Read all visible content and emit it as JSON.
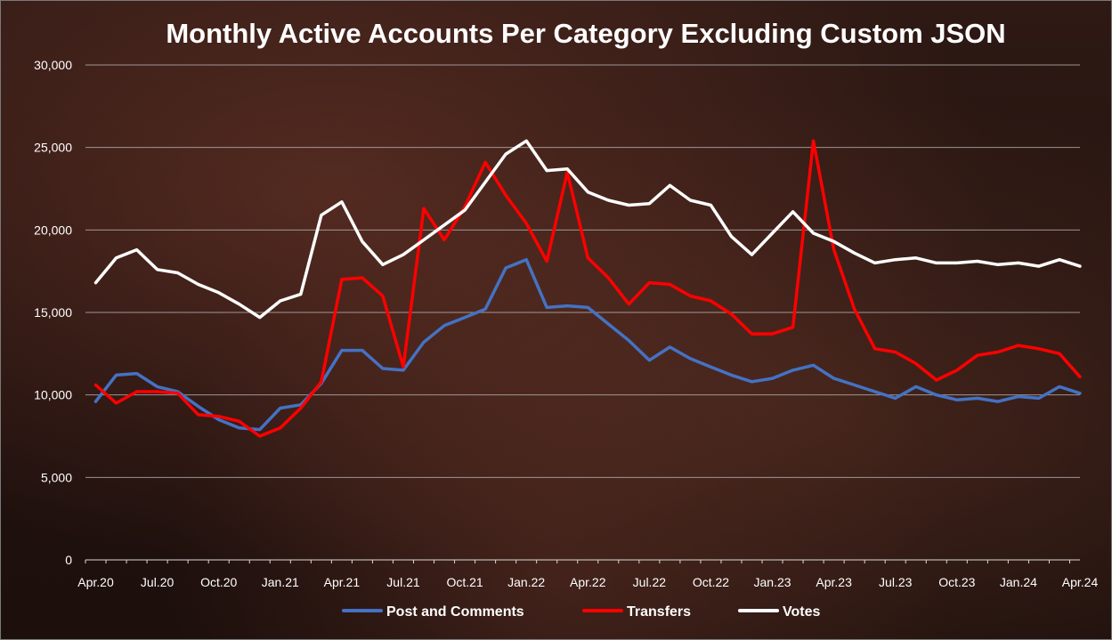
{
  "chart_data": {
    "type": "line",
    "title": "Monthly Active Accounts Per Category Excluding Custom JSON",
    "xlabel": "",
    "ylabel": "",
    "ylim": [
      0,
      30000
    ],
    "yticks": [
      0,
      5000,
      10000,
      15000,
      20000,
      25000,
      30000
    ],
    "ytick_labels": [
      "0",
      "5,000",
      "10,000",
      "15,000",
      "20,000",
      "25,000",
      "30,000"
    ],
    "x": [
      "Apr.20",
      "May.20",
      "Jun.20",
      "Jul.20",
      "Aug.20",
      "Sep.20",
      "Oct.20",
      "Nov.20",
      "Dec.20",
      "Jan.21",
      "Feb.21",
      "Mar.21",
      "Apr.21",
      "May.21",
      "Jun.21",
      "Jul.21",
      "Aug.21",
      "Sep.21",
      "Oct.21",
      "Nov.21",
      "Dec.21",
      "Jan.22",
      "Feb.22",
      "Mar.22",
      "Apr.22",
      "May.22",
      "Jun.22",
      "Jul.22",
      "Aug.22",
      "Sep.22",
      "Oct.22",
      "Nov.22",
      "Dec.22",
      "Jan.23",
      "Feb.23",
      "Mar.23",
      "Apr.23",
      "May.23",
      "Jun.23",
      "Jul.23",
      "Aug.23",
      "Sep.23",
      "Oct.23",
      "Nov.23",
      "Dec.23",
      "Jan.24",
      "Feb.24",
      "Mar.24",
      "Apr.24"
    ],
    "x_tick_labels": [
      "Apr.20",
      "Jul.20",
      "Oct.20",
      "Jan.21",
      "Apr.21",
      "Jul.21",
      "Oct.21",
      "Jan.22",
      "Apr.22",
      "Jul.22",
      "Oct.22",
      "Jan.23",
      "Apr.23",
      "Jul.23",
      "Oct.23",
      "Jan.24",
      "Apr.24"
    ],
    "grid": true,
    "legend_position": "bottom",
    "series": [
      {
        "name": "Post and Comments",
        "color": "#4472c4",
        "values": [
          9600,
          11200,
          11300,
          10500,
          10200,
          9300,
          8500,
          8000,
          7900,
          9200,
          9400,
          10700,
          12700,
          12700,
          11600,
          11500,
          13200,
          14200,
          14700,
          15200,
          17700,
          18200,
          15300,
          15400,
          15300,
          14300,
          13300,
          12100,
          12900,
          12200,
          11700,
          11200,
          10800,
          11000,
          11500,
          11800,
          11000,
          10600,
          10200,
          9800,
          10500,
          10000,
          9700,
          9800,
          9600,
          9900,
          9800,
          10500,
          10100
        ]
      },
      {
        "name": "Transfers",
        "color": "#ff0000",
        "values": [
          10600,
          9500,
          10200,
          10200,
          10100,
          8800,
          8700,
          8400,
          7500,
          8000,
          9200,
          10800,
          17000,
          17100,
          16000,
          11700,
          21300,
          19400,
          21400,
          24100,
          22100,
          20400,
          18100,
          23500,
          18300,
          17100,
          15500,
          16800,
          16700,
          16000,
          15700,
          14900,
          13700,
          13700,
          14100,
          25400,
          18800,
          15200,
          12800,
          12600,
          11900,
          10900,
          11500,
          12400,
          12600,
          13000,
          12800,
          12500,
          11100
        ]
      },
      {
        "name": "Votes",
        "color": "#ffffff",
        "values": [
          16800,
          18300,
          18800,
          17600,
          17400,
          16700,
          16200,
          15500,
          14700,
          15700,
          16100,
          20900,
          21700,
          19300,
          17900,
          18500,
          19400,
          20300,
          21200,
          22900,
          24600,
          25400,
          23600,
          23700,
          22300,
          21800,
          21500,
          21600,
          22700,
          21800,
          21500,
          19600,
          18500,
          19800,
          21100,
          19800,
          19300,
          18600,
          18000,
          18200,
          18300,
          18000,
          18000,
          18100,
          17900,
          18000,
          17800,
          18200,
          17800
        ]
      }
    ]
  }
}
